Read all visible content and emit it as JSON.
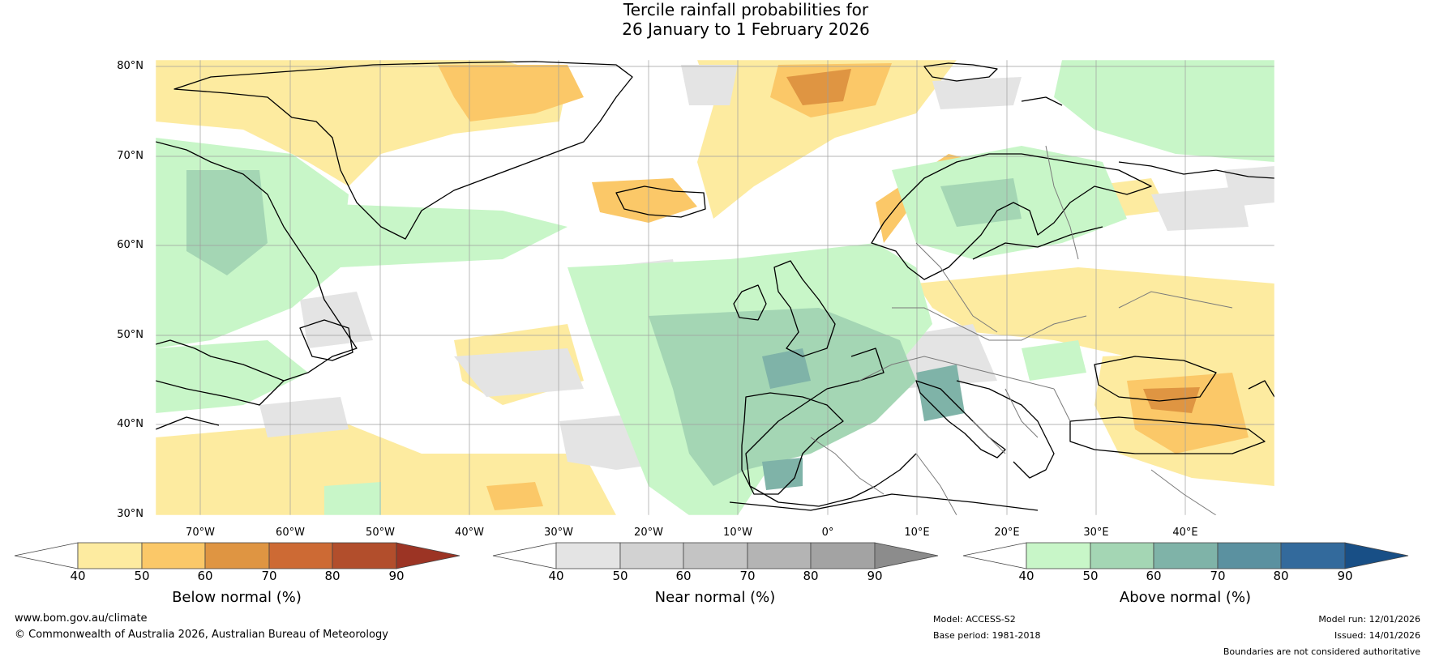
{
  "title": {
    "line1": "Tercile rainfall probabilities for",
    "line2": "26 January to 1 February 2026"
  },
  "map": {
    "latitude_labels": [
      "80°N",
      "70°N",
      "60°N",
      "50°N",
      "40°N",
      "30°N"
    ],
    "longitude_labels": [
      "70°W",
      "60°W",
      "50°W",
      "40°W",
      "30°W",
      "20°W",
      "10°W",
      "0°",
      "10°E",
      "20°E",
      "30°E",
      "40°E"
    ],
    "legend_categories": [
      "Below normal",
      "Near normal",
      "Above normal"
    ]
  },
  "colorbars": [
    {
      "id": "below",
      "label": "Below normal (%)",
      "ticks": [
        "40",
        "50",
        "60",
        "70",
        "80",
        "90"
      ],
      "colors": [
        "#ffffff",
        "#fdeba0",
        "#fbc868",
        "#df9542",
        "#cd6a34",
        "#b24e2c",
        "#9c3424"
      ]
    },
    {
      "id": "near",
      "label": "Near normal (%)",
      "ticks": [
        "40",
        "50",
        "60",
        "70",
        "80",
        "90"
      ],
      "colors": [
        "#ffffff",
        "#e4e4e4",
        "#d2d2d2",
        "#c4c4c4",
        "#b4b4b4",
        "#a3a3a3",
        "#8c8c8c"
      ]
    },
    {
      "id": "above",
      "label": "Above normal (%)",
      "ticks": [
        "40",
        "50",
        "60",
        "70",
        "80",
        "90"
      ],
      "colors": [
        "#ffffff",
        "#c8f6c8",
        "#a4d6b4",
        "#7fb3a8",
        "#5b91a0",
        "#336a9c",
        "#184f86"
      ]
    }
  ],
  "footer": {
    "website": "www.bom.gov.au/climate",
    "copyright": "© Commonwealth of Australia 2026, Australian Bureau of Meteorology",
    "model": "Model: ACCESS-S2",
    "base_period": "Base period: 1981-2018",
    "model_run": "Model run: 12/01/2026",
    "issued": "Issued: 14/01/2026",
    "disclaimer": "Boundaries are not considered authoritative"
  }
}
